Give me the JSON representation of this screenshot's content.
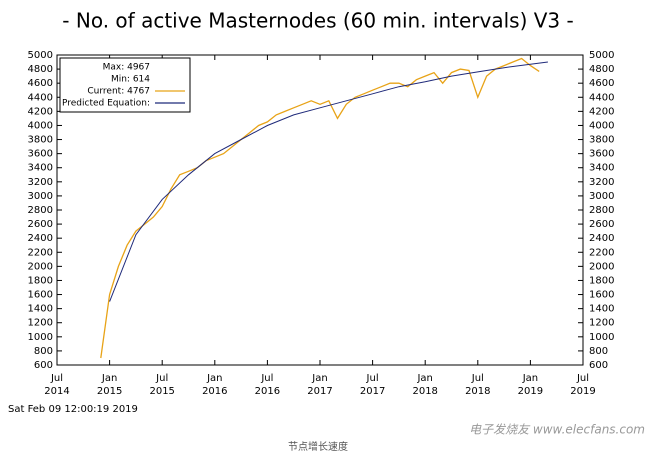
{
  "chart_data": {
    "type": "line",
    "title": "- No. of active Masternodes (60 min. intervals) V3 -",
    "timestamp": "Sat Feb 09 12:00:19 2019",
    "caption": "节点增长速度",
    "watermark": "电子发烧友 www.elecfans.com",
    "legend_notes": [
      "Max: 4967",
      "Min: 614"
    ],
    "legend_position": "upper left",
    "grid": false,
    "xlim": [
      "2014-07",
      "2019-07"
    ],
    "xticks": [
      {
        "value": "2014-07",
        "label": [
          "Jul",
          "2014"
        ]
      },
      {
        "value": "2015-01",
        "label": [
          "Jan",
          "2015"
        ]
      },
      {
        "value": "2015-07",
        "label": [
          "Jul",
          "2015"
        ]
      },
      {
        "value": "2016-01",
        "label": [
          "Jan",
          "2016"
        ]
      },
      {
        "value": "2016-07",
        "label": [
          "Jul",
          "2016"
        ]
      },
      {
        "value": "2017-01",
        "label": [
          "Jan",
          "2017"
        ]
      },
      {
        "value": "2017-07",
        "label": [
          "Jul",
          "2017"
        ]
      },
      {
        "value": "2018-01",
        "label": [
          "Jan",
          "2018"
        ]
      },
      {
        "value": "2018-07",
        "label": [
          "Jul",
          "2018"
        ]
      },
      {
        "value": "2019-01",
        "label": [
          "Jan",
          "2019"
        ]
      },
      {
        "value": "2019-07",
        "label": [
          "Jul",
          "2019"
        ]
      }
    ],
    "ylim": [
      600,
      5000
    ],
    "yticks": [
      600,
      800,
      1000,
      1200,
      1400,
      1600,
      1800,
      2000,
      2200,
      2400,
      2600,
      2800,
      3000,
      3200,
      3400,
      3600,
      3800,
      4000,
      4200,
      4400,
      4600,
      4800,
      5000
    ],
    "y2lim": [
      600,
      5000
    ],
    "y2ticks": [
      600,
      800,
      1000,
      1200,
      1400,
      1600,
      1800,
      2000,
      2200,
      2400,
      2600,
      2800,
      3000,
      3200,
      3400,
      3600,
      3800,
      4000,
      4200,
      4400,
      4600,
      4800,
      5000
    ],
    "series": [
      {
        "name": "Current: 4767",
        "color": "#e8a317",
        "x": [
          "2014-12",
          "2015-01",
          "2015-02",
          "2015-03",
          "2015-04",
          "2015-05",
          "2015-06",
          "2015-07",
          "2015-08",
          "2015-09",
          "2015-10",
          "2015-11",
          "2015-12",
          "2016-01",
          "2016-02",
          "2016-03",
          "2016-04",
          "2016-05",
          "2016-06",
          "2016-07",
          "2016-08",
          "2016-09",
          "2016-10",
          "2016-11",
          "2016-12",
          "2017-01",
          "2017-02",
          "2017-03",
          "2017-04",
          "2017-05",
          "2017-06",
          "2017-07",
          "2017-08",
          "2017-09",
          "2017-10",
          "2017-11",
          "2017-12",
          "2018-01",
          "2018-02",
          "2018-03",
          "2018-04",
          "2018-05",
          "2018-06",
          "2018-07",
          "2018-08",
          "2018-09",
          "2018-10",
          "2018-11",
          "2018-12",
          "2019-01",
          "2019-02"
        ],
        "values": [
          700,
          1600,
          2000,
          2300,
          2500,
          2600,
          2700,
          2850,
          3100,
          3300,
          3350,
          3400,
          3500,
          3550,
          3600,
          3700,
          3800,
          3900,
          4000,
          4050,
          4150,
          4200,
          4250,
          4300,
          4350,
          4300,
          4350,
          4100,
          4300,
          4400,
          4450,
          4500,
          4550,
          4600,
          4600,
          4550,
          4650,
          4700,
          4750,
          4600,
          4750,
          4800,
          4780,
          4400,
          4700,
          4800,
          4850,
          4900,
          4950,
          4850,
          4767
        ]
      },
      {
        "name": "Predicted Equation:",
        "color": "#1f2a7a",
        "x": [
          "2015-01",
          "2015-04",
          "2015-07",
          "2015-10",
          "2016-01",
          "2016-04",
          "2016-07",
          "2016-10",
          "2017-01",
          "2017-04",
          "2017-07",
          "2017-10",
          "2018-01",
          "2018-04",
          "2018-07",
          "2018-10",
          "2019-01",
          "2019-03"
        ],
        "values": [
          1500,
          2450,
          2950,
          3300,
          3600,
          3800,
          4000,
          4150,
          4250,
          4350,
          4450,
          4550,
          4620,
          4700,
          4760,
          4820,
          4870,
          4900
        ]
      }
    ]
  }
}
